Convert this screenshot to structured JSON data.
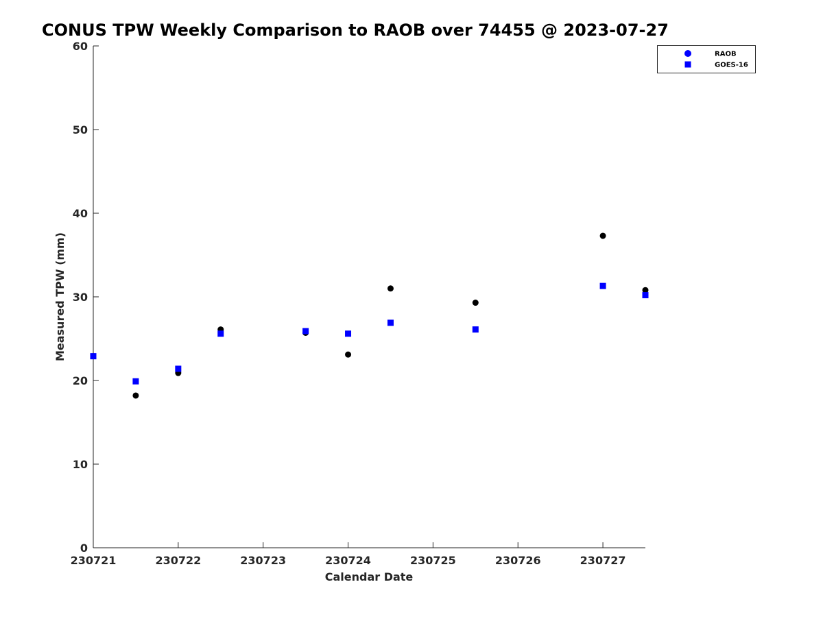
{
  "chart_data": {
    "type": "scatter",
    "title": "CONUS TPW Weekly Comparison to RAOB over 74455 @ 2023-07-27",
    "xlabel": "Calendar Date",
    "ylabel": "Measured TPW (mm)",
    "xlim": [
      230721,
      230727.5
    ],
    "ylim": [
      0,
      60
    ],
    "xticks": [
      230721,
      230722,
      230723,
      230724,
      230725,
      230726,
      230727
    ],
    "xtick_labels": [
      "230721",
      "230722",
      "230723",
      "230724",
      "230725",
      "230726",
      "230727"
    ],
    "yticks": [
      0,
      10,
      20,
      30,
      40,
      50,
      60
    ],
    "ytick_labels": [
      "0",
      "10",
      "20",
      "30",
      "40",
      "50",
      "60"
    ],
    "grid": false,
    "legend_position": "top-right",
    "series": [
      {
        "name": "RAOB",
        "marker": "circle",
        "color": "#000000",
        "legend_color": "#0000ff",
        "x": [
          230721,
          230721.5,
          230722,
          230722.5,
          230723.5,
          230724,
          230724.5,
          230725.5,
          230727,
          230727.5
        ],
        "y": [
          22.9,
          18.2,
          20.9,
          26.1,
          25.7,
          23.1,
          31.0,
          29.3,
          37.3,
          30.8
        ]
      },
      {
        "name": "GOES-16",
        "marker": "square",
        "color": "#0000ff",
        "legend_color": "#0000ff",
        "x": [
          230721,
          230721.5,
          230722,
          230722.5,
          230723.5,
          230724,
          230724.5,
          230725.5,
          230727,
          230727.5
        ],
        "y": [
          22.9,
          19.9,
          21.4,
          25.6,
          25.9,
          25.6,
          26.9,
          26.1,
          31.3,
          30.2
        ]
      }
    ]
  }
}
